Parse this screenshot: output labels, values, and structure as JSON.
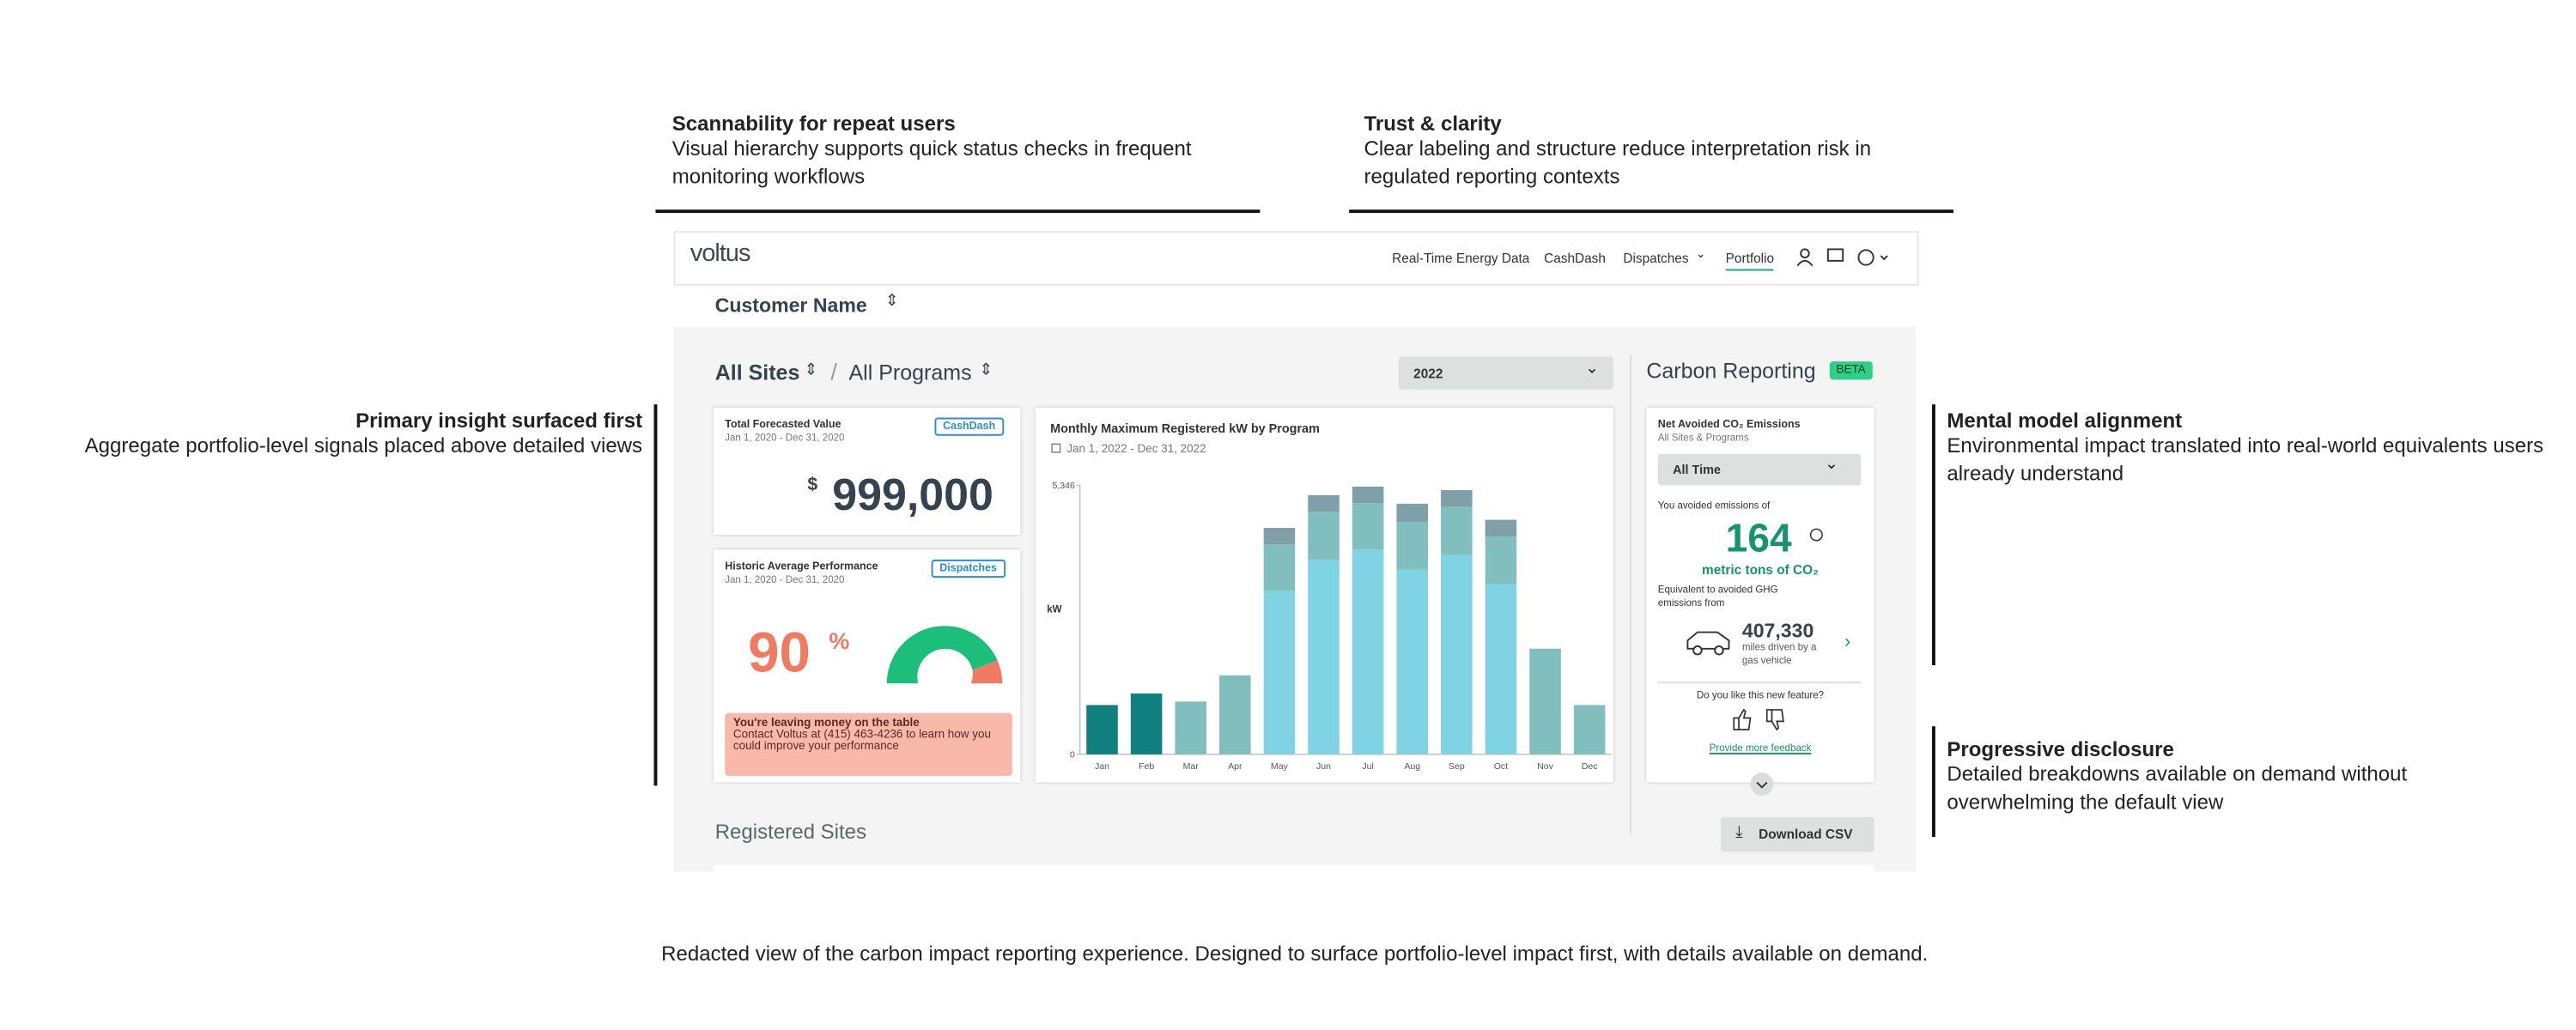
{
  "annotations": [
    {
      "title": "Scannability for repeat users",
      "text": "Visual hierarchy supports quick status checks in frequent monitoring workflows"
    },
    {
      "title": "Trust & clarity",
      "text": "Clear labeling and structure reduce interpretation risk in regulated reporting contexts"
    },
    {
      "title": "Primary insight surfaced first",
      "text": "Aggregate portfolio-level signals placed above detailed views"
    },
    {
      "title": "Mental model alignment",
      "text": "Environmental impact translated into real-world equivalents users already understand"
    },
    {
      "title": "Progressive disclosure",
      "text": "Detailed breakdowns available on demand without overwhelming the default view"
    }
  ],
  "caption": "Redacted view of the carbon impact reporting experience. Designed to surface portfolio-level impact first, with details available on demand.",
  "dashboard": {
    "logo": "voltus",
    "nav": [
      "Real-Time Energy Data",
      "CashDash",
      "Dispatches",
      "Portfolio"
    ],
    "customer": "Customer Name",
    "filters": [
      "All Sites",
      "All Programs"
    ],
    "separator": "/",
    "year": "2022",
    "forecast": {
      "title": "Total Forecasted Value",
      "dates": "Jan 1, 2020 - Dec 31, 2020",
      "link": "CashDash",
      "currency": "$",
      "value": "999,000"
    },
    "performance": {
      "title": "Historic Average Performance",
      "dates": "Jan 1, 2020 - Dec 31, 2020",
      "link": "Dispatches",
      "value": "90",
      "unit": "%",
      "alert_title": "You're leaving money on the table",
      "alert_text": "Contact Voltus at (415) 463-4236 to learn how you could improve your performance"
    },
    "carbon": {
      "title": "Carbon Reporting",
      "badge": "BETA",
      "card_title": "Net Avoided CO₂ Emissions",
      "card_subtitle": "All Sites & Programs",
      "period": "All Time",
      "avoided_label": "You avoided emissions of",
      "amount": "164",
      "amount_unit": "metric tons of CO₂",
      "equivalent": "Equivalent to avoided GHG emissions from",
      "miles": "407,330",
      "miles_label": "miles driven by a gas vehicle",
      "feedback_question": "Do you like this new feature?",
      "feedback_link": "Provide more feedback"
    },
    "registered": "Registered Sites",
    "download": "Download CSV"
  },
  "chart_data": {
    "type": "bar",
    "stacked": true,
    "title": "Monthly Maximum Registered kW by Program",
    "subtitle": "Jan 1, 2022 - Dec 31, 2022",
    "y_label": "kW",
    "categories": [
      "Jan",
      "Feb",
      "Mar",
      "Apr",
      "May",
      "Jun",
      "Jul",
      "Aug",
      "Sep",
      "Oct",
      "Nov",
      "Dec"
    ],
    "series": [
      {
        "color": "#0f7f7f",
        "values": [
          980,
          1210,
          null,
          null,
          null,
          null,
          null,
          null,
          null,
          null,
          null,
          null
        ]
      },
      {
        "color": "#7fd3e3",
        "values": [
          null,
          null,
          null,
          null,
          3250,
          3870,
          4070,
          3670,
          3970,
          3380,
          null,
          null
        ]
      },
      {
        "color": "#80bfbd",
        "values": [
          null,
          null,
          1050,
          1570,
          920,
          950,
          920,
          950,
          950,
          950,
          2100,
          980
        ]
      },
      {
        "color": "#7f9fa9",
        "values": [
          null,
          null,
          null,
          null,
          330,
          330,
          330,
          360,
          330,
          330,
          null,
          null
        ]
      }
    ],
    "ylim": [
      0,
      5346
    ],
    "yticks": [
      0,
      {
        "value": 5346,
        "label": "5,346"
      }
    ]
  }
}
